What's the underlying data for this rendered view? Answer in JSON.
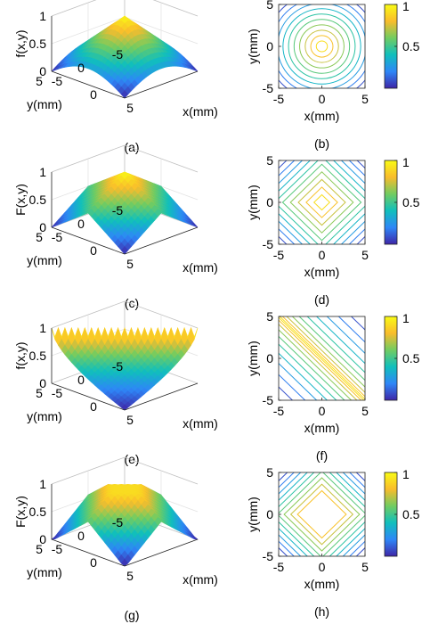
{
  "colorscale": [
    "#3e26a8",
    "#2e87f7",
    "#10bfbc",
    "#72cc61",
    "#f9bc2c",
    "#f9fb15"
  ],
  "colorbar": {
    "ticks": [
      "1",
      "0.5"
    ]
  },
  "panels3d": [
    {
      "caption": "(a)",
      "zlabel": "f(x,y)",
      "xlabel": "x(mm)",
      "ylabel": "y(mm)",
      "zticks": [
        "1",
        "0.5",
        "0"
      ],
      "yticks": [
        "5",
        "0",
        "-5"
      ],
      "xticks": [
        "-5",
        "0",
        "5"
      ]
    },
    {
      "caption": "(c)",
      "zlabel": "F(x,y)",
      "xlabel": "x(mm)",
      "ylabel": "y(mm)",
      "zticks": [
        "1",
        "0.5",
        "0"
      ],
      "yticks": [
        "5",
        "0",
        "-5"
      ],
      "xticks": [
        "-5",
        "0",
        "5"
      ]
    },
    {
      "caption": "(e)",
      "zlabel": "f(x,y)",
      "xlabel": "x(mm)",
      "ylabel": "y(mm)",
      "zticks": [
        "1",
        "0.5",
        "0"
      ],
      "yticks": [
        "5",
        "0",
        "-5"
      ],
      "xticks": [
        "-5",
        "0",
        "5"
      ]
    },
    {
      "caption": "(g)",
      "zlabel": "F(x,y)",
      "xlabel": "x(mm)",
      "ylabel": "y(mm)",
      "zticks": [
        "1",
        "0.5",
        "0"
      ],
      "yticks": [
        "5",
        "0",
        "-5"
      ],
      "xticks": [
        "-5",
        "0",
        "5"
      ]
    }
  ],
  "panels2d": [
    {
      "caption": "(b)",
      "xlabel": "x(mm)",
      "ylabel": "y(mm)",
      "xticks": [
        "-5",
        "0",
        "5"
      ],
      "yticks": [
        "5",
        "0",
        "-5"
      ]
    },
    {
      "caption": "(d)",
      "xlabel": "x(mm)",
      "ylabel": "y(mm)",
      "xticks": [
        "-5",
        "0",
        "5"
      ],
      "yticks": [
        "5",
        "0",
        "-5"
      ]
    },
    {
      "caption": "(f)",
      "xlabel": "x(mm)",
      "ylabel": "y(mm)",
      "xticks": [
        "-5",
        "0",
        "5"
      ],
      "yticks": [
        "5",
        "0",
        "-5"
      ]
    },
    {
      "caption": "(h)",
      "xlabel": "x(mm)",
      "ylabel": "y(mm)",
      "xticks": [
        "-5",
        "0",
        "5"
      ],
      "yticks": [
        "5",
        "0",
        "-5"
      ]
    }
  ],
  "chart_data": [
    {
      "type": "surface",
      "panel": "(a)",
      "x_range": [
        -5,
        5
      ],
      "y_range": [
        -5,
        5
      ],
      "zlim": [
        0,
        1
      ],
      "description_shape": "cone peak at center"
    },
    {
      "type": "contour",
      "panel": "(b)",
      "xlim": [
        -5,
        5
      ],
      "ylim": [
        -5,
        5
      ],
      "contour_shape": "circle",
      "colorbar_range": [
        0,
        1
      ]
    },
    {
      "type": "surface",
      "panel": "(c)",
      "x_range": [
        -5,
        5
      ],
      "y_range": [
        -5,
        5
      ],
      "zlim": [
        0,
        1
      ],
      "description_shape": "pyramid peak at center"
    },
    {
      "type": "contour",
      "panel": "(d)",
      "xlim": [
        -5,
        5
      ],
      "ylim": [
        -5,
        5
      ],
      "contour_shape": "diamond",
      "colorbar_range": [
        0,
        1
      ]
    },
    {
      "type": "surface",
      "panel": "(e)",
      "x_range": [
        -5,
        5
      ],
      "y_range": [
        -5,
        5
      ],
      "zlim": [
        0,
        1
      ],
      "description_shape": "ridge high along anti-diagonal"
    },
    {
      "type": "contour",
      "panel": "(f)",
      "xlim": [
        -5,
        5
      ],
      "ylim": [
        -5,
        5
      ],
      "contour_shape": "diagonal-lines",
      "colorbar_range": [
        0,
        1
      ]
    },
    {
      "type": "surface",
      "panel": "(g)",
      "x_range": [
        -5,
        5
      ],
      "y_range": [
        -5,
        5
      ],
      "zlim": [
        0,
        1
      ],
      "description_shape": "flat-topped pyramid"
    },
    {
      "type": "contour",
      "panel": "(h)",
      "xlim": [
        -5,
        5
      ],
      "ylim": [
        -5,
        5
      ],
      "contour_shape": "truncated-diamond",
      "colorbar_range": [
        0,
        1
      ]
    }
  ]
}
